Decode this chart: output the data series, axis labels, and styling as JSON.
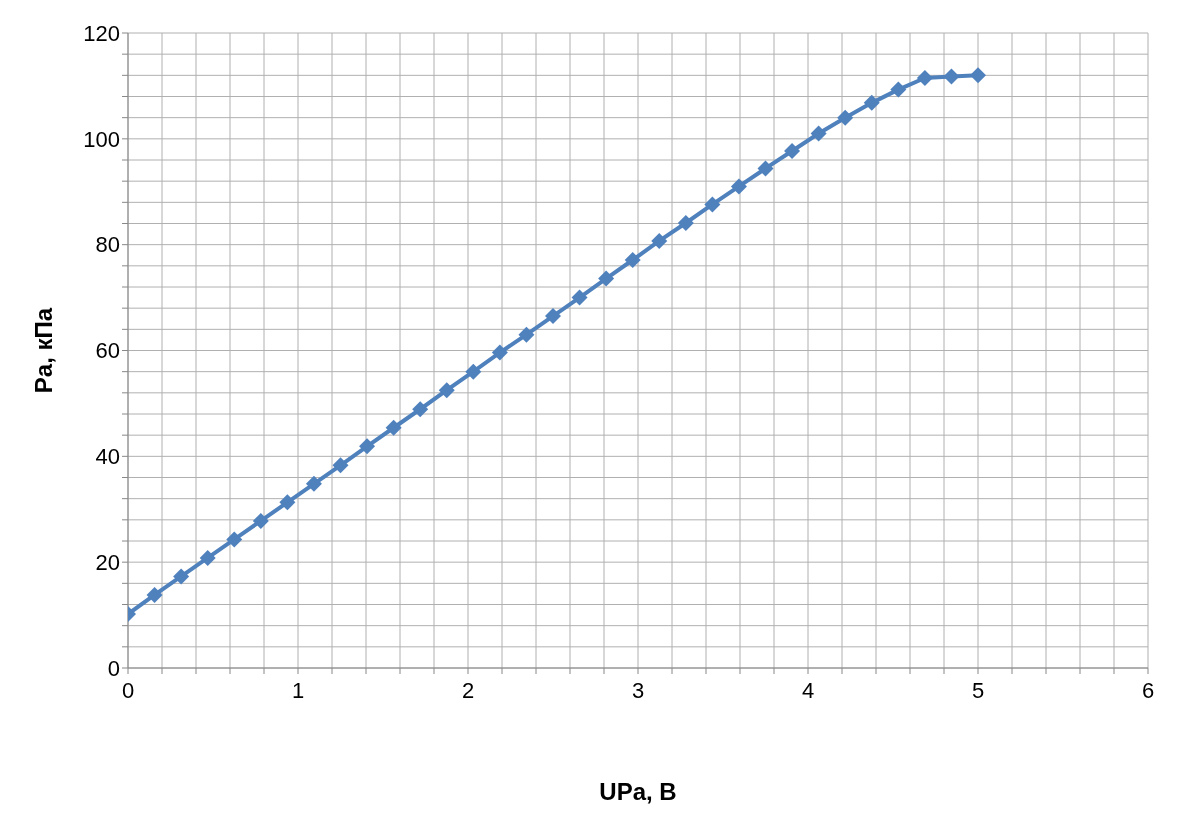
{
  "chart_data": {
    "type": "line",
    "xlabel": "UPa, B",
    "ylabel": "Pa, кПа",
    "x": [
      0,
      0.15625,
      0.3125,
      0.46875,
      0.625,
      0.78125,
      0.9375,
      1.09375,
      1.25,
      1.40625,
      1.5625,
      1.71875,
      1.875,
      2.03125,
      2.1875,
      2.34375,
      2.5,
      2.65625,
      2.8125,
      2.96875,
      3.125,
      3.28125,
      3.4375,
      3.59375,
      3.75,
      3.90625,
      4.0625,
      4.21875,
      4.375,
      4.53125,
      4.6875,
      4.84375,
      5
    ],
    "series": [
      {
        "color": "#4f81bd",
        "values": [
          10.2,
          13.8,
          17.3,
          20.8,
          24.3,
          27.8,
          31.3,
          34.8,
          38.3,
          41.9,
          45.4,
          48.9,
          52.5,
          56,
          59.6,
          63,
          66.5,
          70,
          73.6,
          77.1,
          80.7,
          84.1,
          87.6,
          91,
          94.4,
          97.7,
          101,
          104,
          106.8,
          109.3,
          111.5,
          111.8,
          112
        ]
      }
    ],
    "xlim": [
      0,
      6
    ],
    "xticks": [
      0,
      {
        "value": 0.2,
        "label": null
      },
      {
        "value": 0.4,
        "label": null
      },
      {
        "value": 0.6,
        "label": null
      },
      {
        "value": 0.8,
        "label": null
      },
      1,
      {
        "value": 1.2,
        "label": null
      },
      {
        "value": 1.4,
        "label": null
      },
      {
        "value": 1.6,
        "label": null
      },
      {
        "value": 1.8,
        "label": null
      },
      2,
      {
        "value": 2.2,
        "label": null
      },
      {
        "value": 2.4,
        "label": null
      },
      {
        "value": 2.6,
        "label": null
      },
      {
        "value": 2.8,
        "label": null
      },
      3,
      {
        "value": 3.2,
        "label": null
      },
      {
        "value": 3.4,
        "label": null
      },
      {
        "value": 3.6,
        "label": null
      },
      {
        "value": 3.8,
        "label": null
      },
      4,
      {
        "value": 4.2,
        "label": null
      },
      {
        "value": 4.4,
        "label": null
      },
      {
        "value": 4.6,
        "label": null
      },
      {
        "value": 4.8,
        "label": null
      },
      5,
      {
        "value": 5.2,
        "label": null
      },
      {
        "value": 5.4,
        "label": null
      },
      {
        "value": 5.6,
        "label": null
      },
      {
        "value": 5.8,
        "label": null
      },
      6
    ],
    "ylim": [
      0,
      120
    ],
    "yticks": [
      0,
      {
        "value": 4,
        "label": null
      },
      {
        "value": 8,
        "label": null
      },
      {
        "value": 12,
        "label": null
      },
      {
        "value": 16,
        "label": null
      },
      20,
      {
        "value": 24,
        "label": null
      },
      {
        "value": 28,
        "label": null
      },
      {
        "value": 32,
        "label": null
      },
      {
        "value": 36,
        "label": null
      },
      40,
      {
        "value": 44,
        "label": null
      },
      {
        "value": 48,
        "label": null
      },
      {
        "value": 52,
        "label": null
      },
      {
        "value": 56,
        "label": null
      },
      60,
      {
        "value": 64,
        "label": null
      },
      {
        "value": 68,
        "label": null
      },
      {
        "value": 72,
        "label": null
      },
      {
        "value": 76,
        "label": null
      },
      80,
      {
        "value": 84,
        "label": null
      },
      {
        "value": 88,
        "label": null
      },
      {
        "value": 92,
        "label": null
      },
      {
        "value": 96,
        "label": null
      },
      100,
      {
        "value": 104,
        "label": null
      },
      {
        "value": 108,
        "label": null
      },
      {
        "value": 112,
        "label": null
      },
      {
        "value": 116,
        "label": null
      },
      120
    ],
    "grid": true,
    "marker": "diamond",
    "line_style": "solid",
    "legend": false
  }
}
